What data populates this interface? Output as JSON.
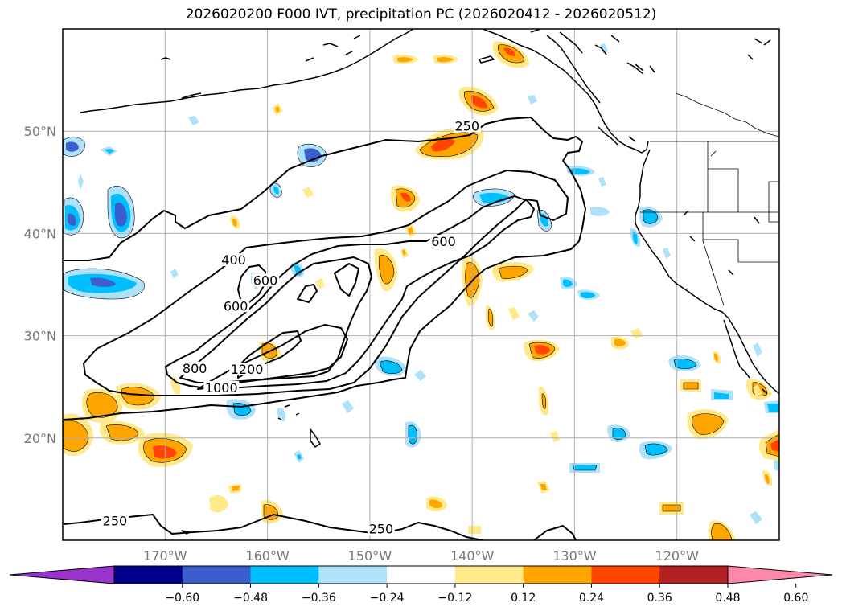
{
  "title": "2026020200 F000 IVT, precipitation PC (2026020412 - 2026020512)",
  "map": {
    "lon_range": [
      -180,
      -110
    ],
    "lat_range": [
      10,
      60
    ],
    "lat_ticks": [
      {
        "value": 20,
        "label": "20°N"
      },
      {
        "value": 30,
        "label": "30°N"
      },
      {
        "value": 40,
        "label": "40°N"
      },
      {
        "value": 50,
        "label": "50°N"
      }
    ],
    "lon_ticks": [
      {
        "value": -170,
        "label": "170°W"
      },
      {
        "value": -160,
        "label": "160°W"
      },
      {
        "value": -150,
        "label": "150°W"
      },
      {
        "value": -140,
        "label": "140°W"
      },
      {
        "value": -130,
        "label": "130°W"
      },
      {
        "value": -120,
        "label": "120°W"
      }
    ],
    "grid": true,
    "contour_labels": [
      {
        "text": "250",
        "lon": -140.5,
        "lat": 50.3
      },
      {
        "text": "400",
        "lon": -163.3,
        "lat": 37.2
      },
      {
        "text": "600",
        "lon": -160.2,
        "lat": 35.2
      },
      {
        "text": "600",
        "lon": -163.1,
        "lat": 32.7
      },
      {
        "text": "600",
        "lon": -142.8,
        "lat": 39.0
      },
      {
        "text": "800",
        "lon": -167.1,
        "lat": 26.6
      },
      {
        "text": "1200",
        "lon": -162.0,
        "lat": 26.5
      },
      {
        "text": "1000",
        "lon": -164.5,
        "lat": 24.7
      },
      {
        "text": "250",
        "lon": -174.9,
        "lat": 11.7
      },
      {
        "text": "250",
        "lon": -148.9,
        "lat": 10.9
      }
    ]
  },
  "colorbar": {
    "ticks": [
      "−0.60",
      "−0.48",
      "−0.36",
      "−0.24",
      "−0.12",
      "0.12",
      "0.24",
      "0.36",
      "0.48",
      "0.60"
    ],
    "colors": [
      "#9933cc",
      "#00008b",
      "#3a5fcd",
      "#00bfff",
      "#aee2fa",
      "#ffffff",
      "#ffe98a",
      "#ffa500",
      "#ff4500",
      "#b22222",
      "#ff88aa"
    ]
  }
}
